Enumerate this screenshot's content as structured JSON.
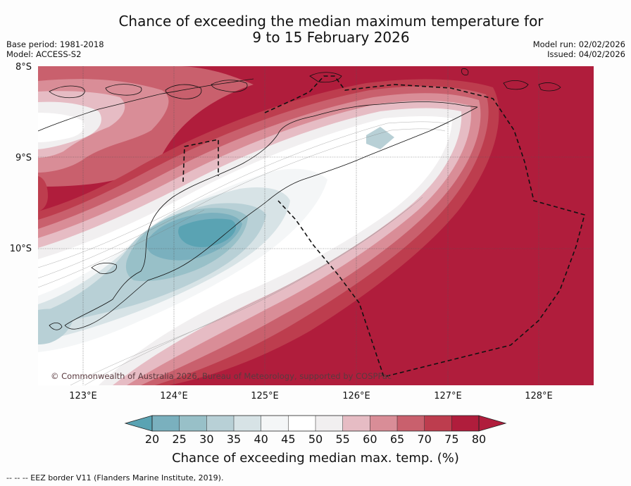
{
  "title_line1": "Chance of exceeding the median maximum temperature for",
  "title_line2": "9 to 15 February 2026",
  "meta_left": {
    "base_period": "Base period: 1981-2018",
    "model": "Model: ACCESS-S2"
  },
  "meta_right": {
    "model_run": "Model run: 02/02/2026",
    "issued": "Issued: 04/02/2026"
  },
  "map": {
    "lat_labels": [
      "8°S",
      "9°S",
      "10°S"
    ],
    "lon_labels": [
      "123°E",
      "124°E",
      "125°E",
      "126°E",
      "127°E",
      "128°E"
    ],
    "copyright": "© Commonwealth of Australia 2026, Bureau of Meteorology, supported by COSPPac"
  },
  "colorbar": {
    "ticks": [
      "20",
      "25",
      "30",
      "35",
      "40",
      "45",
      "50",
      "55",
      "60",
      "65",
      "70",
      "75",
      "80"
    ],
    "colors": [
      "#5aa3b3",
      "#7ab0be",
      "#98c0c8",
      "#b8d0d6",
      "#d7e3e6",
      "#f4f6f7",
      "#ffffff",
      "#f1eff0",
      "#e6bcc4",
      "#d98d97",
      "#c9606d",
      "#bd3d4e",
      "#b01d3c"
    ],
    "label": "Chance of exceeding median max. temp. (%)"
  },
  "footnote": "--  --  -- EEZ border V11 (Flanders Marine Institute, 2019)."
}
